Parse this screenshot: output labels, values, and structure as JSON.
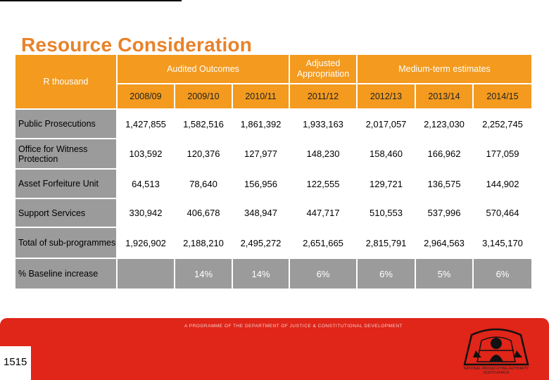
{
  "title": "Resource Consideration",
  "table": {
    "row_header_label": "R thousand",
    "group_audited": "Audited Outcomes",
    "group_adjusted": "Adjusted Appropriation",
    "group_medium": "Medium-term estimates",
    "years": [
      "2008/09",
      "2009/10",
      "2010/11",
      "2011/12",
      "2012/13",
      "2013/14",
      "2014/15"
    ],
    "rows": [
      {
        "label": "Public Prosecutions",
        "values": [
          "1,427,855",
          "1,582,516",
          "1,861,392",
          "1,933,163",
          "2,017,057",
          "2,123,030",
          "2,252,745"
        ]
      },
      {
        "label": "Office for Witness Protection",
        "values": [
          "103,592",
          "120,376",
          "127,977",
          "148,230",
          "158,460",
          "166,962",
          "177,059"
        ]
      },
      {
        "label": "Asset Forfeiture Unit",
        "values": [
          "64,513",
          "78,640",
          "156,956",
          "122,555",
          "129,721",
          "136,575",
          "144,902"
        ]
      },
      {
        "label": "Support Services",
        "values": [
          "330,942",
          "406,678",
          "348,947",
          "447,717",
          "510,553",
          "537,996",
          "570,464"
        ]
      },
      {
        "label": "Total of sub-programmes",
        "values": [
          "1,926,902",
          "2,188,210",
          "2,495,272",
          "2,651,665",
          "2,815,791",
          "2,964,563",
          "3,145,170"
        ]
      },
      {
        "label": "% Baseline increase",
        "values": [
          "",
          "14%",
          "14%",
          "6%",
          "6%",
          "5%",
          "6%"
        ]
      }
    ]
  },
  "footer": {
    "tagline": "A PROGRAMME OF THE DEPARTMENT OF JUSTICE & CONSTITUTIONAL DEVELOPMENT",
    "page_number": "1515",
    "logo_name": "NATIONAL PROSECUTING AUTHORITY",
    "logo_sub": "SOUTH AFRICA"
  },
  "colors": {
    "header_orange": "#f39a1f",
    "label_grey": "#9b9b9b",
    "footer_red": "#e02519",
    "title_orange": "#e8822a"
  }
}
